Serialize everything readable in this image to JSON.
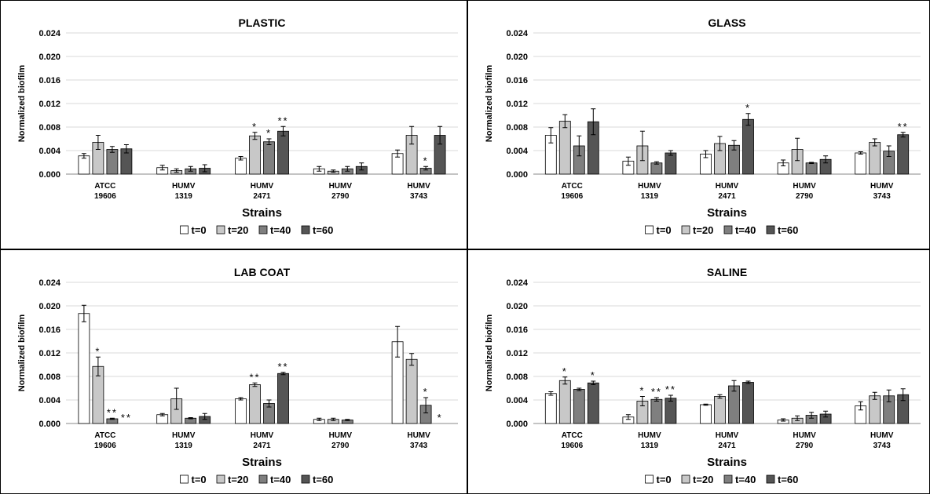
{
  "chart_data": [
    {
      "type": "bar",
      "title": "PLASTIC",
      "xlabel": "Strains",
      "ylabel": "Normalized biofilm",
      "ylim": [
        0,
        0.024
      ],
      "yticks": [
        "0.000",
        "0.004",
        "0.008",
        "0.012",
        "0.016",
        "0.020",
        "0.024"
      ],
      "grid": true,
      "legend_position": "bottom",
      "categories": [
        [
          "ATCC",
          "19606"
        ],
        [
          "HUMV",
          "1319"
        ],
        [
          "HUMV",
          "2471"
        ],
        [
          "HUMV",
          "2790"
        ],
        [
          "HUMV",
          "3743"
        ]
      ],
      "series": [
        {
          "name": "t=0",
          "values": [
            0.0031,
            0.0011,
            0.0027,
            0.0009,
            0.0035
          ],
          "errors": [
            0.0004,
            0.0004,
            0.0003,
            0.0004,
            0.0006
          ],
          "labels": [
            "",
            "",
            "",
            "",
            ""
          ]
        },
        {
          "name": "t=20",
          "values": [
            0.0054,
            0.0006,
            0.0065,
            0.0005,
            0.0066
          ],
          "errors": [
            0.0012,
            0.0003,
            0.0006,
            0.0002,
            0.0015
          ],
          "labels": [
            "",
            "",
            "*",
            "",
            ""
          ]
        },
        {
          "name": "t=40",
          "values": [
            0.0042,
            0.0009,
            0.0055,
            0.0009,
            0.001
          ],
          "errors": [
            0.0005,
            0.0004,
            0.0005,
            0.0004,
            0.0003
          ],
          "labels": [
            "",
            "",
            "*",
            "",
            "*"
          ]
        },
        {
          "name": "t=60",
          "values": [
            0.0043,
            0.001,
            0.0073,
            0.0013,
            0.0066
          ],
          "errors": [
            0.0007,
            0.0006,
            0.0008,
            0.0006,
            0.0015
          ],
          "labels": [
            "",
            "",
            "**",
            "",
            ""
          ]
        }
      ]
    },
    {
      "type": "bar",
      "title": "GLASS",
      "xlabel": "Strains",
      "ylabel": "Normalized biofilm",
      "ylim": [
        0,
        0.024
      ],
      "yticks": [
        "0.000",
        "0.004",
        "0.008",
        "0.012",
        "0.016",
        "0.020",
        "0.024"
      ],
      "grid": true,
      "legend_position": "bottom",
      "categories": [
        [
          "ATCC",
          "19606"
        ],
        [
          "HUMV",
          "1319"
        ],
        [
          "HUMV",
          "2471"
        ],
        [
          "HUMV",
          "2790"
        ],
        [
          "HUMV",
          "3743"
        ]
      ],
      "series": [
        {
          "name": "t=0",
          "values": [
            0.0066,
            0.0022,
            0.0034,
            0.0019,
            0.0036
          ],
          "errors": [
            0.0013,
            0.0007,
            0.0006,
            0.0005,
            0.0002
          ],
          "labels": [
            "",
            "",
            "",
            "",
            ""
          ]
        },
        {
          "name": "t=20",
          "values": [
            0.009,
            0.0048,
            0.0052,
            0.0042,
            0.0054
          ],
          "errors": [
            0.0011,
            0.0025,
            0.0012,
            0.0019,
            0.0006
          ],
          "labels": [
            "",
            "",
            "",
            "",
            ""
          ]
        },
        {
          "name": "t=40",
          "values": [
            0.0048,
            0.0019,
            0.0049,
            0.0019,
            0.0039
          ],
          "errors": [
            0.0017,
            0.0002,
            0.0008,
            0.0001,
            0.0009
          ],
          "labels": [
            "",
            "",
            "",
            "",
            ""
          ]
        },
        {
          "name": "t=60",
          "values": [
            0.0089,
            0.0036,
            0.0093,
            0.0025,
            0.0067
          ],
          "errors": [
            0.0022,
            0.0004,
            0.001,
            0.0006,
            0.0004
          ],
          "labels": [
            "",
            "",
            "*",
            "",
            "**"
          ]
        }
      ]
    },
    {
      "type": "bar",
      "title": "LAB COAT",
      "xlabel": "Strains",
      "ylabel": "Normalized biofilm",
      "ylim": [
        0,
        0.024
      ],
      "yticks": [
        "0.000",
        "0.004",
        "0.008",
        "0.012",
        "0.016",
        "0.020",
        "0.024"
      ],
      "grid": true,
      "legend_position": "bottom",
      "categories": [
        [
          "ATCC",
          "19606"
        ],
        [
          "HUMV",
          "1319"
        ],
        [
          "HUMV",
          "2471"
        ],
        [
          "HUMV",
          "2790"
        ],
        [
          "HUMV",
          "3743"
        ]
      ],
      "series": [
        {
          "name": "t=0",
          "values": [
            0.0187,
            0.0015,
            0.0042,
            0.0007,
            0.0139
          ],
          "errors": [
            0.0014,
            0.0002,
            0.0002,
            0.0002,
            0.0026
          ],
          "labels": [
            "",
            "",
            "",
            "",
            ""
          ]
        },
        {
          "name": "t=20",
          "values": [
            0.0097,
            0.0042,
            0.0066,
            0.0007,
            0.0109
          ],
          "errors": [
            0.0016,
            0.0018,
            0.0003,
            0.0002,
            0.001
          ],
          "labels": [
            "*",
            "",
            "**",
            "",
            ""
          ]
        },
        {
          "name": "t=40",
          "values": [
            0.0008,
            0.0009,
            0.0034,
            0.0006,
            0.0031
          ],
          "errors": [
            0.0001,
            0.0001,
            0.0006,
            0.0001,
            0.0013
          ],
          "labels": [
            "**",
            "",
            "",
            "",
            "*"
          ]
        },
        {
          "name": "t=60",
          "values": [
            0.0,
            0.0012,
            0.0085,
            0.0,
            0.0
          ],
          "errors": [
            0,
            0.0005,
            0.0002,
            0,
            0
          ],
          "labels": [
            "**",
            "",
            "**",
            "",
            "*"
          ]
        }
      ]
    },
    {
      "type": "bar",
      "title": "SALINE",
      "xlabel": "Strains",
      "ylabel": "Normalized biofilm",
      "ylim": [
        0,
        0.024
      ],
      "yticks": [
        "0.000",
        "0.004",
        "0.008",
        "0.012",
        "0.016",
        "0.020",
        "0.024"
      ],
      "grid": true,
      "legend_position": "bottom",
      "categories": [
        [
          "ATCC",
          "19606"
        ],
        [
          "HUMV",
          "1319"
        ],
        [
          "HUMV",
          "2471"
        ],
        [
          "HUMV",
          "2790"
        ],
        [
          "HUMV",
          "3743"
        ]
      ],
      "series": [
        {
          "name": "t=0",
          "values": [
            0.0051,
            0.0011,
            0.0032,
            0.0006,
            0.003
          ],
          "errors": [
            0.0003,
            0.0004,
            0.0001,
            0.0002,
            0.0007
          ],
          "labels": [
            "",
            "",
            "",
            "",
            ""
          ]
        },
        {
          "name": "t=20",
          "values": [
            0.0073,
            0.0038,
            0.0046,
            0.0009,
            0.0047
          ],
          "errors": [
            0.0006,
            0.0008,
            0.0003,
            0.0004,
            0.0006
          ],
          "labels": [
            "*",
            "*",
            "",
            "",
            ""
          ]
        },
        {
          "name": "t=40",
          "values": [
            0.0058,
            0.0041,
            0.0064,
            0.0014,
            0.0047
          ],
          "errors": [
            0.0002,
            0.0003,
            0.0009,
            0.0005,
            0.001
          ],
          "labels": [
            "",
            "**",
            "",
            "",
            ""
          ]
        },
        {
          "name": "t=60",
          "values": [
            0.0069,
            0.0043,
            0.007,
            0.0016,
            0.0049
          ],
          "errors": [
            0.0003,
            0.0005,
            0.0002,
            0.0005,
            0.001
          ],
          "labels": [
            "*",
            "**",
            "",
            "",
            ""
          ]
        }
      ]
    }
  ],
  "colors": {
    "t=0": "#ffffff",
    "t=20": "#c8c8c8",
    "t=40": "#7f7f7f",
    "t=60": "#555555",
    "axis": "#888888",
    "grid": "#d9d9d9",
    "border": "#000000",
    "error": "#000000"
  }
}
